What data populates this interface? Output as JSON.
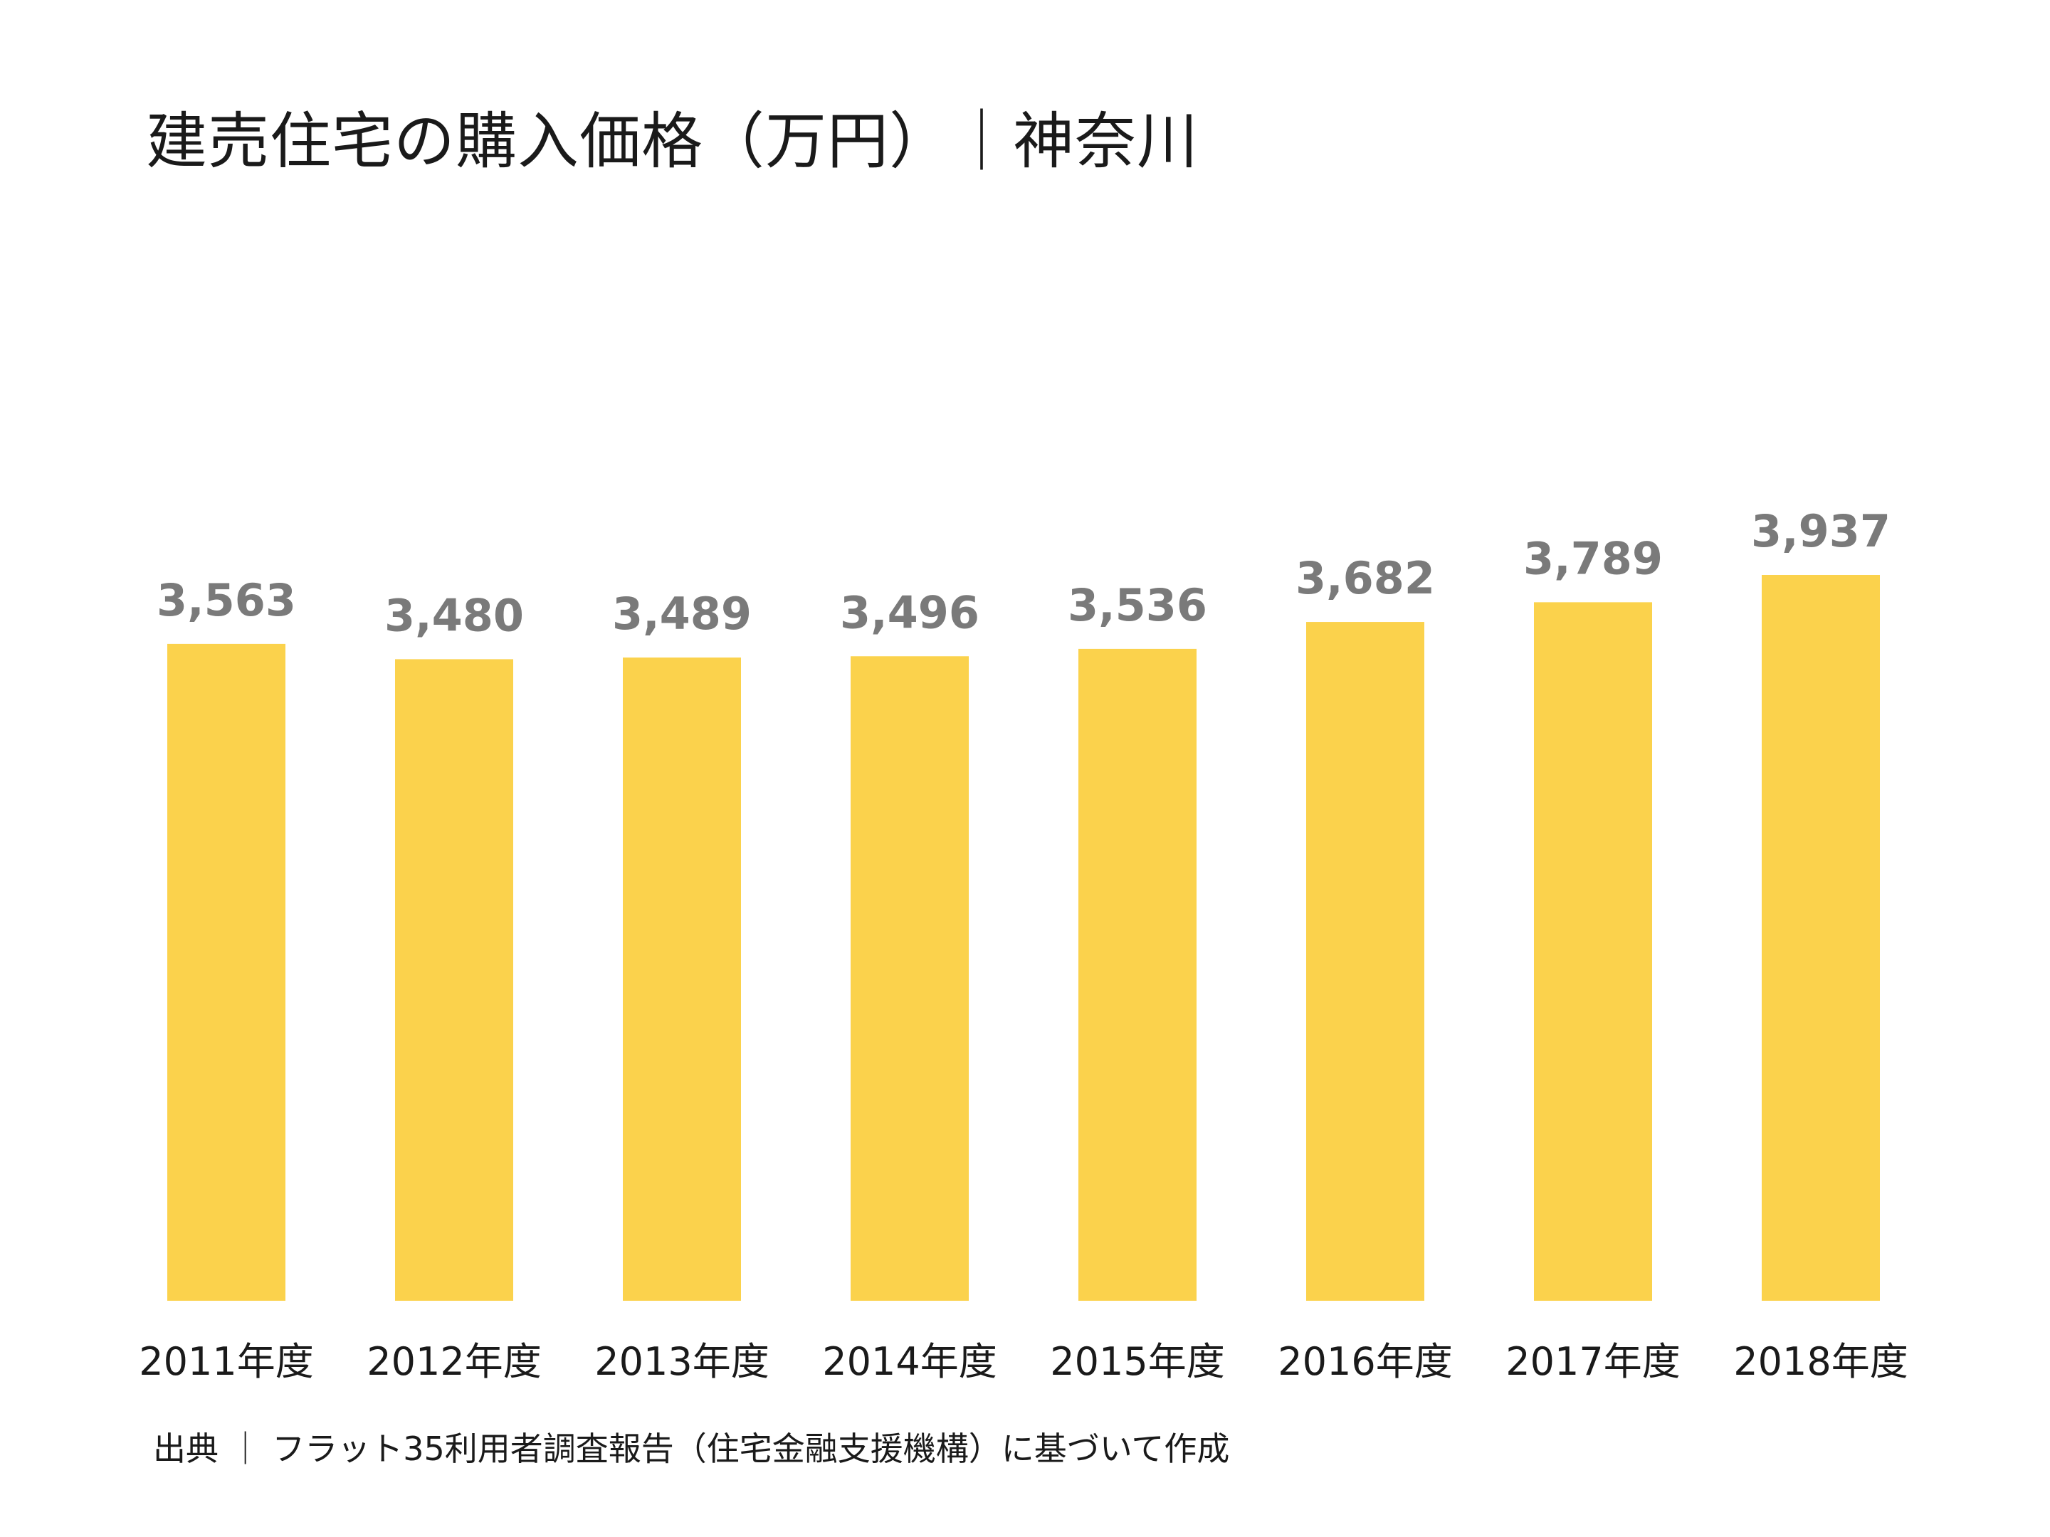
{
  "chart_data": {
    "type": "bar",
    "title": "建売住宅の購入価格（万円）｜神奈川",
    "categories": [
      "2011年度",
      "2012年度",
      "2013年度",
      "2014年度",
      "2015年度",
      "2016年度",
      "2017年度",
      "2018年度"
    ],
    "values": [
      3563,
      3480,
      3489,
      3496,
      3536,
      3682,
      3789,
      3937
    ],
    "value_labels": [
      "3,563",
      "3,480",
      "3,489",
      "3,496",
      "3,536",
      "3,682",
      "3,789",
      "3,937"
    ],
    "xlabel": "",
    "ylabel": "",
    "ylim": [
      0,
      3937
    ],
    "grid": false,
    "legend": "none",
    "bar_color": "#FBD24C",
    "value_label_color": "#7A7A7A",
    "text_color": "#1A1A1A"
  },
  "source": "出典 ｜ フラット35利用者調査報告（住宅金融支援機構）に基づいて作成"
}
